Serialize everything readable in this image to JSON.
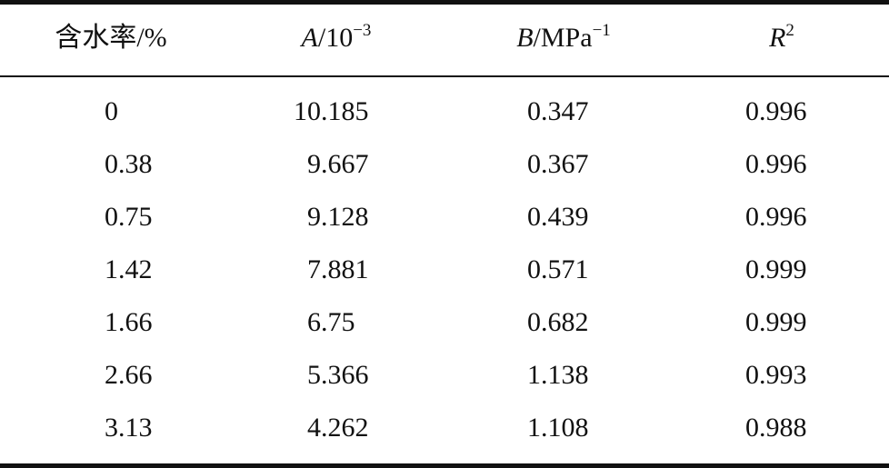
{
  "table": {
    "header": [
      {
        "rest": "含水率/%"
      },
      {
        "var": "A",
        "rest": "/10",
        "sup": "−3"
      },
      {
        "var": "B",
        "rest": "/MPa",
        "sup": "−1"
      },
      {
        "var": "R",
        "sup": "2"
      }
    ],
    "rows": [
      [
        "0",
        "10.185",
        "0.347",
        "0.996"
      ],
      [
        "0.38",
        "9.667",
        "0.367",
        "0.996"
      ],
      [
        "0.75",
        "9.128",
        "0.439",
        "0.996"
      ],
      [
        "1.42",
        "7.881",
        "0.571",
        "0.999"
      ],
      [
        "1.66",
        "6.75",
        "0.682",
        "0.999"
      ],
      [
        "2.66",
        "5.366",
        "1.138",
        "0.993"
      ],
      [
        "3.13",
        "4.262",
        "1.108",
        "0.988"
      ]
    ]
  }
}
